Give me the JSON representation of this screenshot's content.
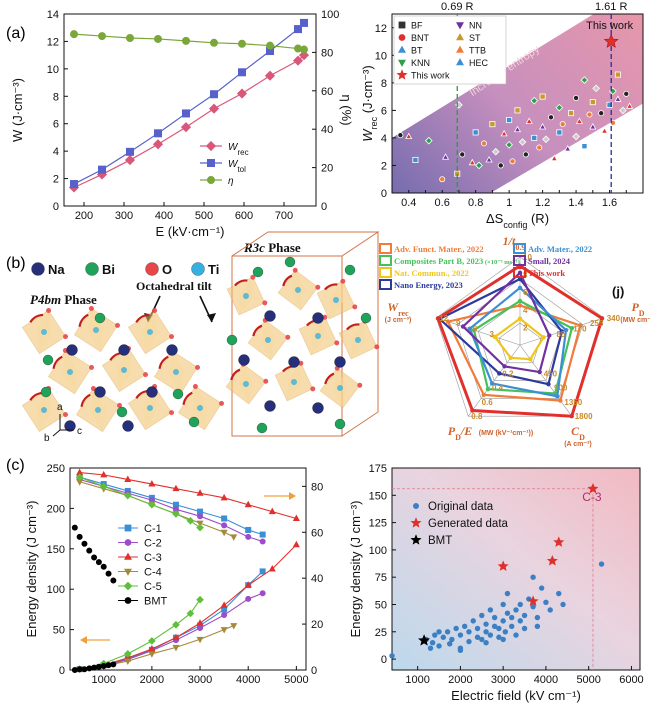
{
  "figure": {
    "panel_a": "(a)",
    "panel_b": "(b)",
    "panel_c": "(c)"
  },
  "chart_data": [
    {
      "id": "a_left",
      "type": "line",
      "xlabel": "E (kV·cm⁻¹)",
      "ylabel_left": "W (J·cm⁻³)",
      "ylabel_right": "η (%)",
      "xlim": [
        150,
        780
      ],
      "ylim_left": [
        0,
        14
      ],
      "ylim_right": [
        0,
        100
      ],
      "xticks": [
        200,
        300,
        400,
        500,
        600,
        700
      ],
      "yticks_left": [
        0,
        2,
        4,
        6,
        8,
        10,
        12,
        14
      ],
      "yticks_right": [
        0,
        20,
        40,
        60,
        80,
        100
      ],
      "x": [
        175,
        245,
        315,
        385,
        455,
        525,
        595,
        665,
        735,
        750
      ],
      "series": [
        {
          "name": "W_rec",
          "label_main": "W",
          "label_sub": "rec",
          "axis": "left",
          "color": "#d9577a",
          "marker": "diamond",
          "values": [
            1.35,
            2.3,
            3.35,
            4.5,
            5.75,
            7.1,
            8.2,
            9.5,
            10.6,
            11.0
          ]
        },
        {
          "name": "W_tol",
          "label_main": "W",
          "label_sub": "tol",
          "axis": "left",
          "color": "#5661cc",
          "marker": "square",
          "values": [
            1.6,
            2.65,
            3.95,
            5.3,
            6.75,
            8.15,
            9.75,
            11.3,
            12.9,
            13.35
          ]
        },
        {
          "name": "η",
          "label_main": "η",
          "label_sub": "",
          "axis": "right",
          "color": "#7aa63a",
          "marker": "circle",
          "values": [
            89.5,
            88.5,
            87.5,
            87.0,
            86.0,
            85.0,
            84.5,
            83.5,
            82.0,
            81.5
          ]
        }
      ]
    },
    {
      "id": "a_right",
      "type": "scatter",
      "xlabel": "ΔS_config (R)",
      "xlabel_main": "ΔS",
      "xlabel_sub": "config",
      "xlabel_tail": " (R)",
      "ylabel": "W_rec (J·cm⁻³)",
      "ylabel_main": "W",
      "ylabel_sub": "rec",
      "ylabel_tail": " (J·cm⁻³)",
      "xlim": [
        0.3,
        1.8
      ],
      "ylim": [
        0,
        13
      ],
      "xticks": [
        0.4,
        0.5,
        0.6,
        0.7,
        0.8,
        0.9,
        1.0,
        1.1,
        1.2,
        1.3,
        1.4,
        1.5,
        1.6,
        1.7
      ],
      "yticks": [
        0,
        2,
        4,
        6,
        8,
        10,
        12
      ],
      "band_label": "Increase entropy",
      "vlines": [
        {
          "x": 0.69,
          "label": "0.69 R",
          "color": "#2e9a3b"
        },
        {
          "x": 1.61,
          "label": "1.61 R",
          "color": "#2a2c9a"
        }
      ],
      "legend": [
        "BF",
        "BNT",
        "BT",
        "KNN",
        "This work",
        "NN",
        "ST",
        "TTB",
        "HEC"
      ],
      "annotation": "This work",
      "highlight": {
        "x": 1.61,
        "y": 11.0
      },
      "points": [
        [
          0.35,
          4.2
        ],
        [
          0.4,
          4.1
        ],
        [
          0.44,
          2.4
        ],
        [
          0.52,
          3.8
        ],
        [
          0.6,
          1.0
        ],
        [
          0.62,
          2.6
        ],
        [
          0.69,
          1.4
        ],
        [
          0.7,
          6.4
        ],
        [
          0.72,
          2.8
        ],
        [
          0.78,
          2.2
        ],
        [
          0.8,
          4.4
        ],
        [
          0.82,
          2.0
        ],
        [
          0.85,
          3.6
        ],
        [
          0.88,
          2.4
        ],
        [
          0.9,
          5.0
        ],
        [
          0.92,
          3.0
        ],
        [
          0.95,
          2.0
        ],
        [
          0.97,
          4.3
        ],
        [
          1.0,
          5.3
        ],
        [
          1.0,
          3.5
        ],
        [
          1.02,
          2.3
        ],
        [
          1.05,
          4.6
        ],
        [
          1.05,
          6.0
        ],
        [
          1.08,
          3.7
        ],
        [
          1.1,
          2.8
        ],
        [
          1.12,
          5.2
        ],
        [
          1.15,
          4.0
        ],
        [
          1.15,
          6.7
        ],
        [
          1.18,
          3.3
        ],
        [
          1.2,
          4.8
        ],
        [
          1.2,
          7.0
        ],
        [
          1.22,
          3.9
        ],
        [
          1.25,
          5.5
        ],
        [
          1.27,
          2.5
        ],
        [
          1.3,
          4.4
        ],
        [
          1.3,
          6.2
        ],
        [
          1.32,
          5.0
        ],
        [
          1.35,
          3.2
        ],
        [
          1.37,
          5.8
        ],
        [
          1.4,
          4.1
        ],
        [
          1.4,
          6.9
        ],
        [
          1.42,
          5.2
        ],
        [
          1.45,
          3.4
        ],
        [
          1.45,
          8.2
        ],
        [
          1.48,
          5.7
        ],
        [
          1.5,
          4.8
        ],
        [
          1.5,
          6.6
        ],
        [
          1.52,
          7.6
        ],
        [
          1.55,
          5.8
        ],
        [
          1.57,
          4.5
        ],
        [
          1.6,
          6.4
        ],
        [
          1.62,
          7.4
        ],
        [
          1.62,
          5.1
        ],
        [
          1.65,
          6.8
        ],
        [
          1.65,
          8.6
        ],
        [
          1.68,
          6.0
        ],
        [
          1.7,
          7.2
        ],
        [
          1.72,
          6.3
        ]
      ]
    },
    {
      "id": "b_radar",
      "type": "radar",
      "legend": [
        "Adv. Funct. Mater., 2022",
        "Composites Part B, 2023",
        "Nat. Commun., 2022",
        "Nano Energy, 2023",
        "Adv. Mater., 2022",
        "Small, 2024",
        "This work"
      ],
      "legend_sup": [
        "",
        "(×10⁻³ ms⁻¹)",
        "",
        "",
        "",
        "",
        ""
      ],
      "legend_colors": [
        "#f07b3b",
        "#46c15a",
        "#f0c61b",
        "#2c3a9c",
        "#3b8fd4",
        "#7030a0",
        "#e1302c"
      ],
      "panel_tag": "(j)",
      "axes": [
        {
          "name": "1/t0.9",
          "main": "1/t",
          "sub": "0.9",
          "unit": "",
          "ticks": [
            "10",
            "8",
            "6",
            "4",
            "2"
          ]
        },
        {
          "name": "P_D",
          "main": "P",
          "sub": "D",
          "unit": "(MW cm⁻³)",
          "ticks": [
            "340",
            "255",
            "170",
            "85"
          ]
        },
        {
          "name": "C_D",
          "main": "C",
          "sub": "D",
          "unit": "(A cm⁻²)",
          "ticks": [
            "1800",
            "1350",
            "900",
            "450"
          ]
        },
        {
          "name": "P_D/E",
          "main": "P",
          "sub": "D",
          "tail": "/E",
          "unit": "(MW (kV⁻¹cm⁻¹))",
          "ticks": [
            "0.8",
            "0.6",
            "0.4",
            "0.2"
          ]
        },
        {
          "name": "W_rec",
          "main": "W",
          "sub": "rec",
          "unit": "(J cm⁻³)",
          "ticks": [
            "12",
            "9",
            "6",
            "3"
          ]
        }
      ],
      "series": [
        {
          "name": "Adv. Funct. Mater., 2022",
          "values": [
            0.45,
            0.72,
            0.78,
            0.7,
            0.86
          ]
        },
        {
          "name": "Composites Part B, 2023",
          "values": [
            0.5,
            0.62,
            0.68,
            0.62,
            0.55
          ]
        },
        {
          "name": "Nat. Commun., 2022",
          "values": [
            0.3,
            0.28,
            0.2,
            0.18,
            0.3
          ]
        },
        {
          "name": "Nano Energy, 2023",
          "values": [
            0.75,
            0.5,
            0.55,
            0.4,
            0.96
          ]
        },
        {
          "name": "Adv. Mater., 2022",
          "values": [
            0.65,
            0.55,
            0.72,
            0.54,
            0.6
          ]
        },
        {
          "name": "Small, 2024",
          "values": [
            0.82,
            0.35,
            0.38,
            0.3,
            0.68
          ]
        },
        {
          "name": "This work",
          "values": [
            0.9,
            0.98,
            1.0,
            0.92,
            0.98
          ]
        }
      ]
    },
    {
      "id": "c_left",
      "type": "line",
      "xlabel": "Electric field (kV cm⁻¹)",
      "ylabel": "Energy density (J cm⁻³)",
      "xlim": [
        300,
        5200
      ],
      "ylim_left": [
        0,
        250
      ],
      "ylim_right": [
        0,
        88
      ],
      "xticks": [
        1000,
        2000,
        3000,
        4000,
        5000
      ],
      "yticks_left": [
        0,
        50,
        100,
        150,
        200,
        250
      ],
      "yticks_right": [
        0,
        20,
        40,
        60,
        80
      ],
      "legend": [
        "C-1",
        "C-2",
        "C-3",
        "C-4",
        "C-5",
        "BMT"
      ],
      "series": [
        {
          "name": "C-1",
          "color": "#3b8fd4",
          "marker": "square",
          "x": [
            500,
            1000,
            1500,
            2000,
            2500,
            3000,
            3500,
            4000,
            4300
          ],
          "energy": [
            1,
            6,
            14,
            25,
            40,
            55,
            75,
            105,
            122
          ],
          "efficiency": [
            84,
            81,
            78,
            75,
            72,
            69,
            66,
            61,
            59
          ]
        },
        {
          "name": "C-2",
          "color": "#9b4dca",
          "marker": "circle",
          "x": [
            500,
            1000,
            1500,
            2000,
            2500,
            3000,
            3500,
            4000,
            4300
          ],
          "energy": [
            1,
            5,
            13,
            24,
            37,
            52,
            68,
            88,
            95
          ],
          "efficiency": [
            83,
            80,
            77,
            74,
            70,
            67,
            63,
            58,
            56
          ]
        },
        {
          "name": "C-3",
          "color": "#e1302c",
          "marker": "triangle",
          "x": [
            500,
            1000,
            1500,
            2000,
            2500,
            3000,
            3500,
            4000,
            4500,
            5000
          ],
          "energy": [
            1,
            6,
            15,
            26,
            40,
            58,
            80,
            105,
            125,
            155
          ],
          "efficiency": [
            86,
            85,
            83,
            81,
            79,
            77,
            75,
            72,
            69,
            66
          ]
        },
        {
          "name": "C-4",
          "color": "#a68a3b",
          "marker": "triangle-down",
          "x": [
            500,
            1000,
            1500,
            2000,
            2500,
            3000,
            3500,
            3700
          ],
          "energy": [
            1,
            5,
            11,
            20,
            28,
            38,
            50,
            55
          ],
          "efficiency": [
            82,
            79,
            76,
            72,
            68,
            64,
            60,
            58
          ]
        },
        {
          "name": "C-5",
          "color": "#5fbf3c",
          "marker": "diamond",
          "x": [
            500,
            1000,
            1500,
            2000,
            2500,
            2800,
            3000
          ],
          "energy": [
            1,
            8,
            20,
            36,
            56,
            70,
            87
          ],
          "efficiency": [
            84,
            80,
            76,
            72,
            68,
            65,
            62
          ]
        },
        {
          "name": "BMT",
          "color": "#000000",
          "marker": "circle",
          "x": [
            400,
            500,
            600,
            700,
            800,
            900,
            1000,
            1100,
            1200
          ],
          "energy": [
            0,
            1,
            1,
            2,
            3,
            4,
            5,
            6,
            7
          ],
          "efficiency": [
            62,
            58,
            55,
            52,
            49,
            47,
            45,
            42,
            39
          ]
        }
      ]
    },
    {
      "id": "c_right",
      "type": "scatter",
      "xlabel": "Electric field (kV cm⁻¹)",
      "ylabel": "Energy density (J cm⁻³)",
      "xlim": [
        400,
        6200
      ],
      "ylim": [
        -10,
        175
      ],
      "xticks": [
        1000,
        2000,
        3000,
        4000,
        5000,
        6000
      ],
      "yticks": [
        0,
        25,
        50,
        75,
        100,
        125,
        150,
        175
      ],
      "legend": [
        "Original data",
        "Generated data",
        "BMT"
      ],
      "annotation": "C-3",
      "highlight": {
        "x": 5100,
        "y": 156
      },
      "original": [
        [
          400,
          3
        ],
        [
          1200,
          18
        ],
        [
          1300,
          10
        ],
        [
          1350,
          15
        ],
        [
          1400,
          22
        ],
        [
          1500,
          12
        ],
        [
          1600,
          20
        ],
        [
          1700,
          25
        ],
        [
          1750,
          14
        ],
        [
          1800,
          18
        ],
        [
          1900,
          28
        ],
        [
          2000,
          10
        ],
        [
          2000,
          22
        ],
        [
          2100,
          30
        ],
        [
          2200,
          16
        ],
        [
          2200,
          25
        ],
        [
          2300,
          35
        ],
        [
          2400,
          20
        ],
        [
          2400,
          28
        ],
        [
          2500,
          18
        ],
        [
          2500,
          40
        ],
        [
          2600,
          25
        ],
        [
          2600,
          32
        ],
        [
          2700,
          22
        ],
        [
          2700,
          45
        ],
        [
          2800,
          30
        ],
        [
          2800,
          38
        ],
        [
          2900,
          20
        ],
        [
          2900,
          28
        ],
        [
          3000,
          35
        ],
        [
          3000,
          50
        ],
        [
          3050,
          25
        ],
        [
          3100,
          42
        ],
        [
          3100,
          60
        ],
        [
          3200,
          30
        ],
        [
          3200,
          38
        ],
        [
          3300,
          22
        ],
        [
          3300,
          45
        ],
        [
          3400,
          35
        ],
        [
          3400,
          50
        ],
        [
          3500,
          28
        ],
        [
          3500,
          40
        ],
        [
          3600,
          55
        ],
        [
          3700,
          48
        ],
        [
          3700,
          75
        ],
        [
          3800,
          38
        ],
        [
          3900,
          65
        ],
        [
          4000,
          52
        ],
        [
          4100,
          45
        ],
        [
          4300,
          60
        ],
        [
          4400,
          50
        ],
        [
          5300,
          87
        ],
        [
          2000,
          8
        ],
        [
          1500,
          25
        ],
        [
          2600,
          15
        ],
        [
          3000,
          18
        ],
        [
          3800,
          30
        ]
      ],
      "generated": [
        [
          3000,
          85
        ],
        [
          3700,
          53
        ],
        [
          4150,
          90
        ],
        [
          4300,
          107
        ],
        [
          5100,
          156
        ]
      ],
      "bmt": [
        [
          1150,
          17
        ]
      ]
    }
  ],
  "crystal": {
    "elements": [
      "Na",
      "Bi",
      "O",
      "Ti"
    ],
    "element_colors": [
      "#26307a",
      "#1fa35a",
      "#e8474a",
      "#36b0e0"
    ],
    "phase_left": "P4bm Phase",
    "phase_left_italic": "P4bm",
    "phase_left_rest": " Phase",
    "phase_right": "R3c Phase",
    "phase_right_italic": "R3c",
    "phase_right_rest": " Phase",
    "annotation": "Octahedral tilt",
    "axes": [
      "a",
      "b",
      "c"
    ]
  }
}
